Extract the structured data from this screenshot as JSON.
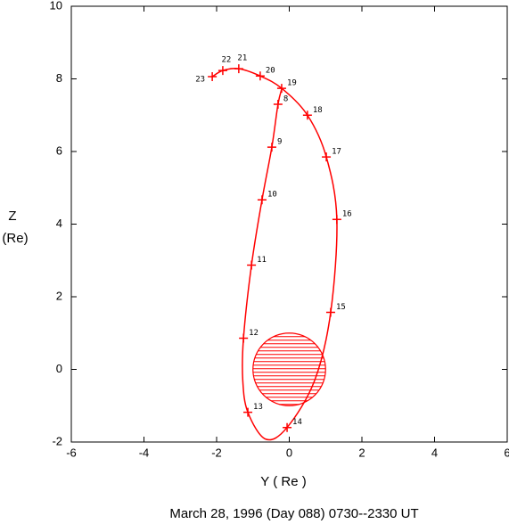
{
  "chart_data": {
    "type": "orbit",
    "title": "March 28, 1996 (Day 088)  0730--2330 UT",
    "x_label": "Y ( Re )",
    "y_label_lines": [
      "Z",
      "(Re)"
    ],
    "xlim": [
      -6,
      6
    ],
    "ylim": [
      -2,
      10
    ],
    "xticks": [
      -6,
      -4,
      -2,
      0,
      2,
      4,
      6
    ],
    "yticks": [
      -2,
      0,
      2,
      4,
      6,
      8,
      10
    ],
    "color": "#ff0000",
    "earth": {
      "x": 0,
      "y": 0,
      "radius": 1
    },
    "trajectory": {
      "x": [
        -0.2,
        -0.31,
        -0.48,
        -0.75,
        -1.04,
        -1.26,
        -1.28,
        -1.14,
        -0.65,
        -0.06,
        0.7,
        1.14,
        1.31,
        1.02,
        0.5,
        -0.21,
        -0.8,
        -1.39,
        -1.83,
        -2.12
      ],
      "y": [
        7.75,
        7.3,
        6.12,
        4.67,
        2.87,
        0.86,
        -0.3,
        -1.18,
        -1.92,
        -1.6,
        -0.3,
        1.57,
        4.13,
        5.85,
        7.0,
        7.74,
        8.08,
        8.28,
        8.23,
        8.06
      ]
    },
    "hour_marks": {
      "labels": [
        "8",
        "9",
        "10",
        "11",
        "12",
        "13",
        "14",
        "15",
        "16",
        "17",
        "18",
        "19",
        "20",
        "21",
        "22",
        "23"
      ],
      "x": [
        -0.31,
        -0.48,
        -0.75,
        -1.04,
        -1.26,
        -1.14,
        -0.06,
        1.14,
        1.31,
        1.02,
        0.5,
        -0.21,
        -0.8,
        -1.39,
        -1.83,
        -2.12
      ],
      "y": [
        7.3,
        6.12,
        4.67,
        2.87,
        0.86,
        -1.18,
        -1.6,
        1.57,
        4.13,
        5.85,
        7.0,
        7.74,
        8.08,
        8.28,
        8.23,
        8.06
      ]
    }
  }
}
